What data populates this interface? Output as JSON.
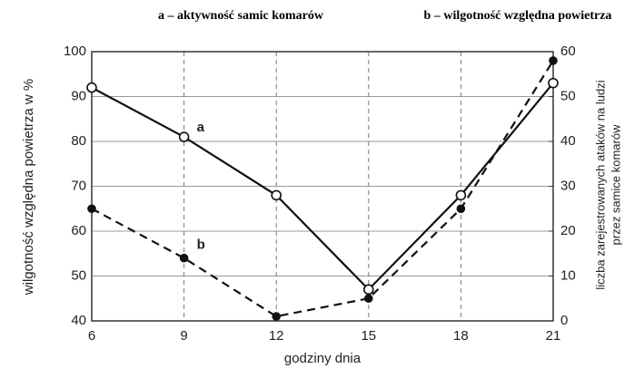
{
  "chart_data": {
    "type": "line",
    "x_label": "godziny dnia",
    "y_label": "wilgotność względna powietrza w %",
    "y2_label": [
      "liczba zarejestrowanych ataków na ludzi",
      "przez samice komarów"
    ],
    "x": [
      6,
      9,
      12,
      15,
      18,
      21
    ],
    "xlim": [
      6,
      21
    ],
    "xticks": [
      6,
      9,
      12,
      15,
      18,
      21
    ],
    "ylim": [
      40,
      100
    ],
    "yticks": [
      40,
      50,
      60,
      70,
      80,
      90,
      100
    ],
    "y2lim": [
      0,
      60
    ],
    "y2ticks": [
      0,
      10,
      20,
      30,
      40,
      50,
      60
    ],
    "grid": true,
    "series": [
      {
        "name": "a – aktywność samic komarów",
        "label": "a",
        "axis": "y2",
        "color": "#111111",
        "linestyle": "solid",
        "marker": "open",
        "values": [
          52,
          41,
          28,
          7,
          28,
          53
        ]
      },
      {
        "name": "b – wilgotność względna powietrza",
        "label": "b",
        "axis": "y",
        "color": "#111111",
        "linestyle": "dashed",
        "marker": "filled",
        "values": [
          65,
          54,
          41,
          45,
          65,
          98
        ]
      }
    ]
  }
}
